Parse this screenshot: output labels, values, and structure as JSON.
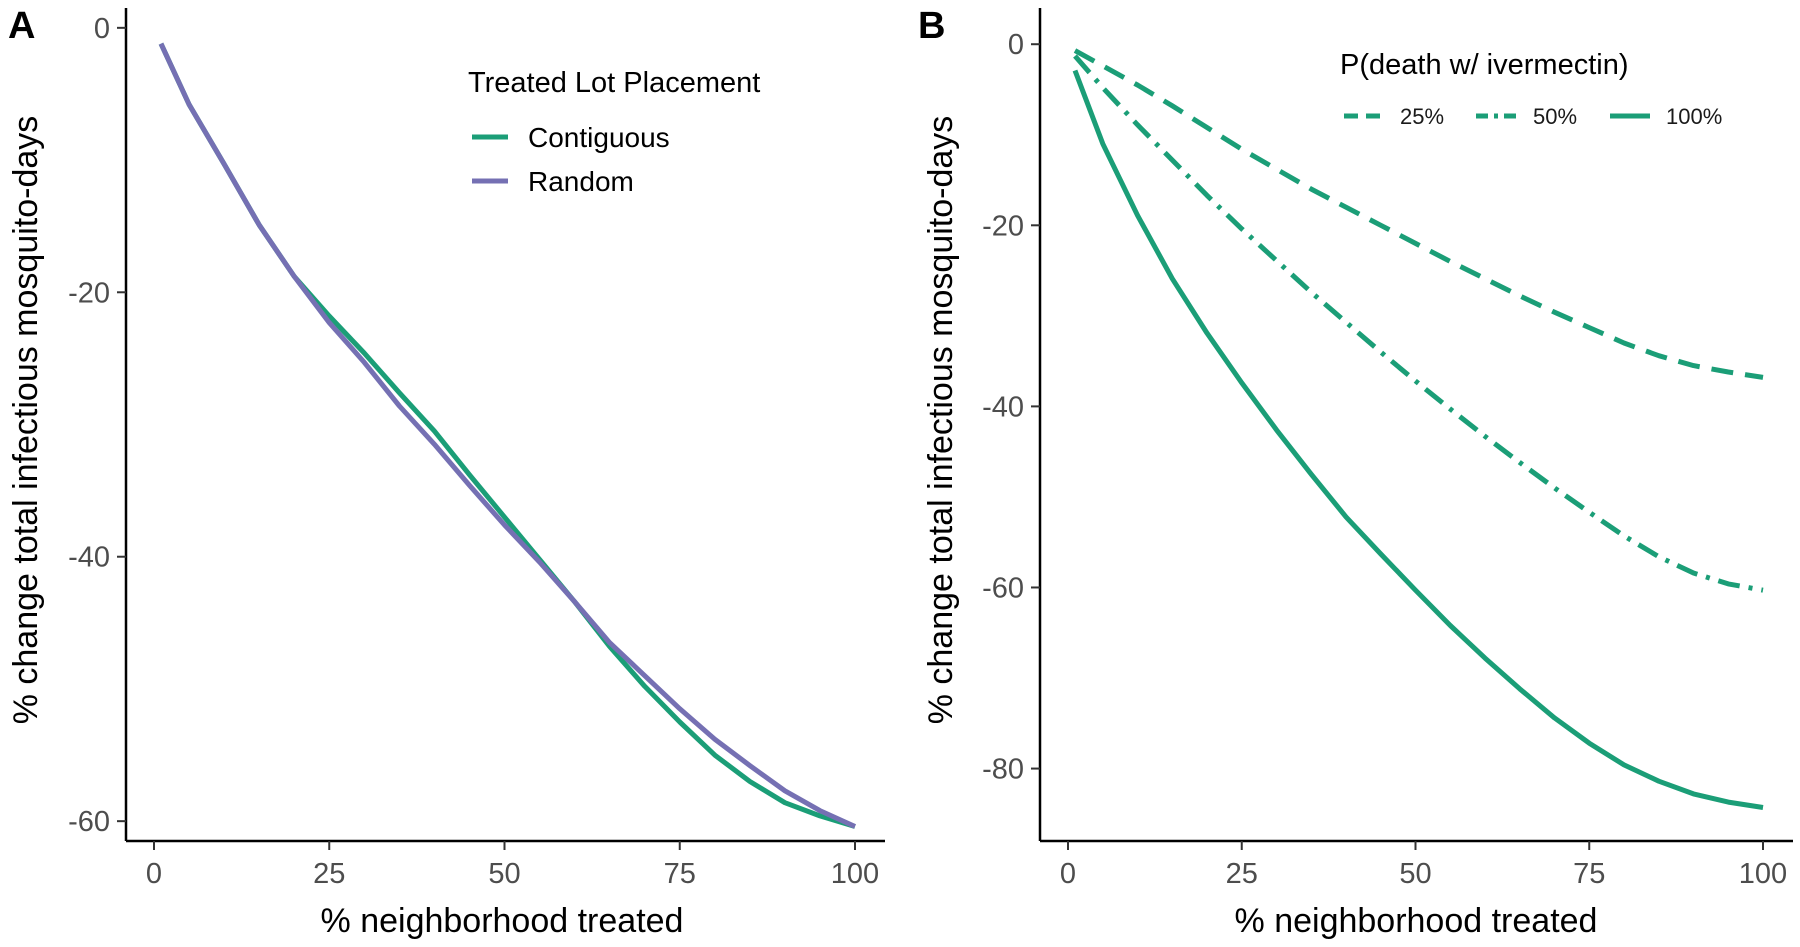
{
  "chart_data": [
    {
      "panel": "A",
      "type": "line",
      "xlabel": "% neighborhood treated",
      "ylabel": "% change total infectious mosquito-days",
      "xlim": [
        0,
        100
      ],
      "ylim": [
        -61.5,
        1.5
      ],
      "xticks": [
        0,
        25,
        50,
        75,
        100
      ],
      "yticks": [
        0,
        -20,
        -40,
        -60
      ],
      "grid": false,
      "legend": {
        "title": "Treated Lot Placement",
        "position": "top-right"
      },
      "series": [
        {
          "name": "Contiguous",
          "color": "#1b9e77",
          "linestyle": "solid",
          "x": [
            1,
            5,
            10,
            15,
            20,
            25,
            30,
            35,
            40,
            45,
            50,
            55,
            60,
            65,
            70,
            75,
            80,
            85,
            90,
            95,
            100
          ],
          "y": [
            -1.2,
            -5.8,
            -10.3,
            -14.9,
            -18.8,
            -21.8,
            -24.6,
            -27.6,
            -30.5,
            -33.8,
            -37.0,
            -40.2,
            -43.4,
            -46.8,
            -49.8,
            -52.5,
            -55.0,
            -57.0,
            -58.6,
            -59.6,
            -60.4
          ]
        },
        {
          "name": "Random",
          "color": "#7570b3",
          "linestyle": "solid",
          "x": [
            1,
            5,
            10,
            15,
            20,
            25,
            30,
            35,
            40,
            45,
            50,
            55,
            60,
            65,
            70,
            75,
            80,
            85,
            90,
            95,
            100
          ],
          "y": [
            -1.2,
            -5.8,
            -10.3,
            -14.9,
            -18.8,
            -22.3,
            -25.3,
            -28.6,
            -31.5,
            -34.6,
            -37.6,
            -40.4,
            -43.4,
            -46.5,
            -49.0,
            -51.5,
            -53.8,
            -55.8,
            -57.7,
            -59.2,
            -60.4
          ]
        }
      ]
    },
    {
      "panel": "B",
      "type": "line",
      "xlabel": "% neighborhood treated",
      "ylabel": "% change total infectious mosquito-days",
      "xlim": [
        0,
        100
      ],
      "ylim": [
        -88,
        4
      ],
      "xticks": [
        0,
        25,
        50,
        75,
        100
      ],
      "yticks": [
        0,
        -20,
        -40,
        -60,
        -80
      ],
      "grid": false,
      "legend": {
        "title": "P(death w/ ivermectin)",
        "position": "top-right"
      },
      "series": [
        {
          "name": "25%",
          "color": "#1b9e77",
          "linestyle": "dashed",
          "x": [
            1,
            5,
            10,
            15,
            20,
            25,
            30,
            35,
            40,
            45,
            50,
            55,
            60,
            65,
            70,
            75,
            80,
            85,
            90,
            95,
            100
          ],
          "y": [
            -0.7,
            -2.4,
            -4.5,
            -6.8,
            -9.2,
            -11.6,
            -13.8,
            -16.0,
            -18.0,
            -20.0,
            -22.0,
            -24.0,
            -25.9,
            -27.8,
            -29.6,
            -31.3,
            -33.0,
            -34.4,
            -35.5,
            -36.2,
            -36.8
          ]
        },
        {
          "name": "50%",
          "color": "#1b9e77",
          "linestyle": "dotdash",
          "x": [
            1,
            5,
            10,
            15,
            20,
            25,
            30,
            35,
            40,
            45,
            50,
            55,
            60,
            65,
            70,
            75,
            80,
            85,
            90,
            95,
            100
          ],
          "y": [
            -1.3,
            -4.8,
            -8.9,
            -12.8,
            -16.7,
            -20.4,
            -23.9,
            -27.4,
            -30.7,
            -34.0,
            -37.2,
            -40.3,
            -43.3,
            -46.2,
            -49.0,
            -51.7,
            -54.3,
            -56.6,
            -58.4,
            -59.6,
            -60.3
          ]
        },
        {
          "name": "100%",
          "color": "#1b9e77",
          "linestyle": "solid",
          "x": [
            1,
            5,
            10,
            15,
            20,
            25,
            30,
            35,
            40,
            45,
            50,
            55,
            60,
            65,
            70,
            75,
            80,
            85,
            90,
            95,
            100
          ],
          "y": [
            -2.9,
            -11.0,
            -18.9,
            -25.9,
            -31.9,
            -37.4,
            -42.6,
            -47.5,
            -52.2,
            -56.3,
            -60.3,
            -64.2,
            -67.8,
            -71.2,
            -74.4,
            -77.2,
            -79.6,
            -81.4,
            -82.8,
            -83.7,
            -84.3
          ]
        }
      ]
    }
  ]
}
